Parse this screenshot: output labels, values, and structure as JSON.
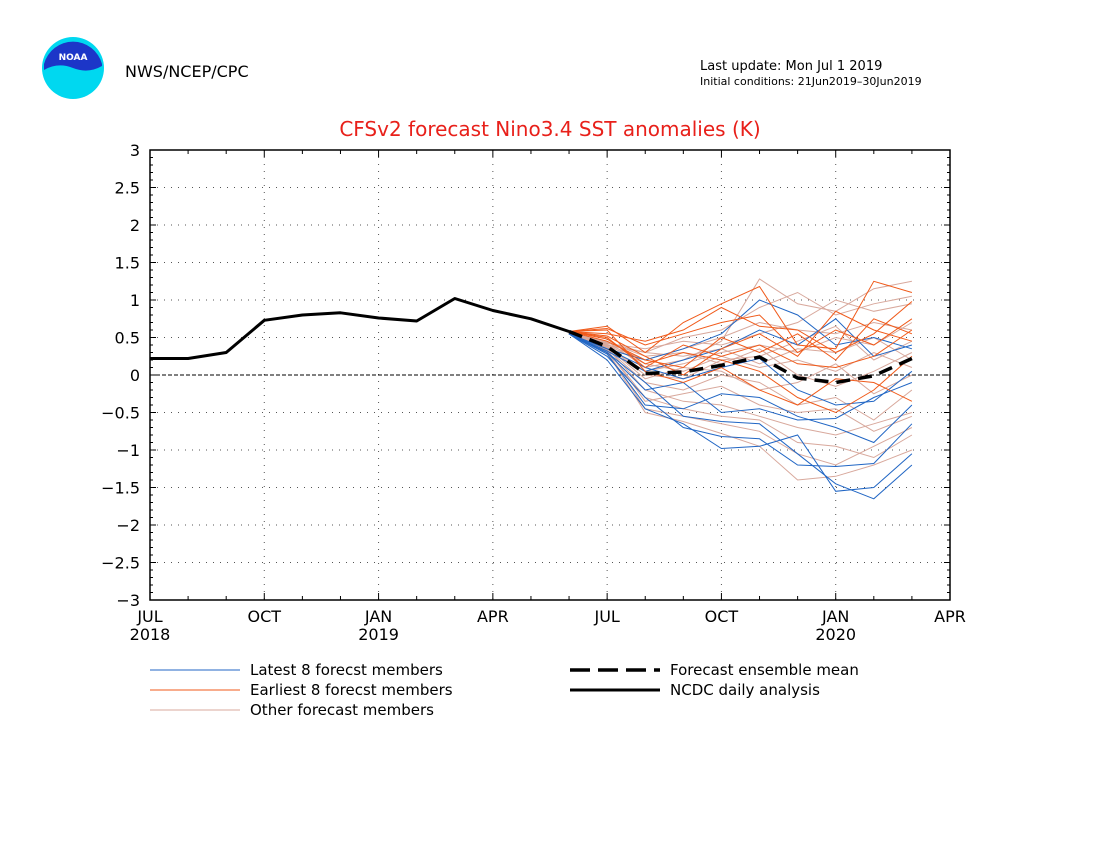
{
  "header": {
    "agency": "NWS/NCEP/CPC",
    "logo_text": "NOAA",
    "last_update": "Last update: Mon Jul  1 2019",
    "initial_conditions": "Initial conditions: 21Jun2019–30Jun2019"
  },
  "colors": {
    "title": "#e8201a",
    "latest": "#2166c4",
    "earliest": "#f05a1a",
    "other": "#d8a89c",
    "mean": "#000000",
    "analysis": "#000000",
    "logo_outer": "#00d8f0",
    "logo_inner": "#1c36c8"
  },
  "chart_data": {
    "type": "line",
    "title": "CFSv2 forecast Nino3.4 SST anomalies (K)",
    "ylim": [
      -3,
      3
    ],
    "y_ticks": [
      3,
      2.5,
      2,
      1.5,
      1,
      0.5,
      0,
      -0.5,
      -1,
      -1.5,
      -2,
      -2.5,
      -3
    ],
    "y_tick_labels": [
      "3",
      "2.5",
      "2",
      "1.5",
      "1",
      "0.5",
      "0",
      "−0.5",
      "−1",
      "−1.5",
      "−2",
      "−2.5",
      "−3"
    ],
    "xlim": [
      0,
      21
    ],
    "x_ticks": [
      {
        "month": 0,
        "label": "JUL",
        "year": "2018"
      },
      {
        "month": 3,
        "label": "OCT",
        "year": ""
      },
      {
        "month": 6,
        "label": "JAN",
        "year": "2019"
      },
      {
        "month": 9,
        "label": "APR",
        "year": ""
      },
      {
        "month": 12,
        "label": "JUL",
        "year": ""
      },
      {
        "month": 15,
        "label": "OCT",
        "year": ""
      },
      {
        "month": 18,
        "label": "JAN",
        "year": "2020"
      },
      {
        "month": 21,
        "label": "APR",
        "year": ""
      }
    ],
    "grid": true,
    "analysis": {
      "name": "NCDC daily analysis",
      "x": [
        0,
        1,
        2,
        3,
        4,
        5,
        6,
        7,
        8,
        9,
        10,
        11
      ],
      "y": [
        0.22,
        0.22,
        0.3,
        0.73,
        0.8,
        0.83,
        0.76,
        0.72,
        1.02,
        0.86,
        0.75,
        0.58
      ]
    },
    "ensemble_mean": {
      "name": "Forecast ensemble mean",
      "x": [
        11,
        12,
        13,
        14,
        15,
        16,
        17,
        18,
        19,
        20
      ],
      "y": [
        0.58,
        0.38,
        0.02,
        0.04,
        0.13,
        0.24,
        -0.04,
        -0.1,
        -0.01,
        0.22
      ]
    },
    "member_x": [
      11,
      12,
      13,
      14,
      15,
      16,
      17,
      18,
      19,
      20
    ],
    "member_groups": [
      {
        "name": "Latest 8 forecst members",
        "color_key": "latest",
        "members": [
          [
            0.55,
            0.2,
            -0.45,
            -0.65,
            -0.98,
            -0.95,
            -0.8,
            -1.55,
            -1.5,
            -1.05
          ],
          [
            0.55,
            0.25,
            -0.3,
            -0.7,
            -0.82,
            -0.85,
            -1.2,
            -1.22,
            -1.18,
            -0.65
          ],
          [
            0.55,
            0.3,
            -0.1,
            -0.55,
            -0.62,
            -0.65,
            -1.05,
            -1.45,
            -1.65,
            -1.2
          ],
          [
            0.55,
            0.35,
            0.1,
            -0.05,
            0.1,
            0.22,
            -0.2,
            -0.4,
            -0.35,
            0.05
          ],
          [
            0.55,
            0.35,
            0.2,
            0.35,
            0.55,
            1.0,
            0.8,
            0.4,
            0.5,
            0.35
          ],
          [
            0.55,
            0.3,
            -0.2,
            -0.1,
            -0.5,
            -0.45,
            -0.6,
            -0.58,
            -0.3,
            -0.1
          ],
          [
            0.55,
            0.32,
            0.05,
            0.2,
            0.35,
            0.6,
            0.4,
            0.75,
            0.25,
            0.4
          ],
          [
            0.55,
            0.28,
            -0.4,
            -0.45,
            -0.25,
            -0.3,
            -0.55,
            -0.7,
            -0.9,
            -0.4
          ]
        ]
      },
      {
        "name": "Earliest 8 forecst members",
        "color_key": "earliest",
        "members": [
          [
            0.58,
            0.65,
            0.3,
            0.7,
            0.95,
            1.18,
            0.4,
            0.35,
            1.25,
            1.1
          ],
          [
            0.58,
            0.55,
            0.45,
            0.6,
            0.9,
            0.65,
            0.6,
            0.3,
            0.55,
            0.98
          ],
          [
            0.58,
            0.5,
            0.1,
            0.4,
            0.25,
            0.4,
            0.15,
            0.1,
            0.25,
            0.6
          ],
          [
            0.58,
            0.6,
            0.05,
            -0.1,
            0.1,
            -0.2,
            -0.4,
            -0.05,
            -0.1,
            -0.35
          ],
          [
            0.58,
            0.45,
            0.2,
            0.1,
            0.5,
            0.3,
            0.55,
            0.2,
            0.75,
            0.55
          ],
          [
            0.58,
            0.62,
            0.4,
            0.55,
            0.7,
            0.8,
            0.3,
            0.6,
            0.4,
            0.75
          ],
          [
            0.58,
            0.48,
            0.15,
            0.3,
            0.2,
            0.05,
            -0.3,
            -0.5,
            -0.2,
            0.25
          ],
          [
            0.58,
            0.52,
            0.25,
            0.0,
            0.35,
            0.55,
            0.25,
            0.85,
            0.6,
            0.45
          ]
        ]
      },
      {
        "name": "Other forecast members",
        "color_key": "other",
        "members": [
          [
            0.56,
            0.45,
            0.1,
            0.2,
            0.45,
            1.28,
            0.95,
            0.85,
            1.15,
            1.25
          ],
          [
            0.56,
            0.4,
            0.3,
            0.5,
            0.6,
            0.9,
            1.1,
            0.8,
            0.95,
            1.05
          ],
          [
            0.56,
            0.42,
            0.35,
            0.45,
            0.4,
            0.55,
            0.7,
            1.0,
            0.85,
            0.95
          ],
          [
            0.56,
            0.38,
            0.05,
            0.15,
            0.3,
            0.4,
            0.3,
            0.5,
            0.4,
            0.7
          ],
          [
            0.56,
            0.35,
            -0.1,
            -0.2,
            0.0,
            -0.1,
            -0.4,
            -0.3,
            -0.6,
            -0.2
          ],
          [
            0.56,
            0.33,
            -0.3,
            -0.45,
            -0.55,
            -0.6,
            -0.9,
            -0.95,
            -1.1,
            -0.8
          ],
          [
            0.56,
            0.3,
            -0.5,
            -0.62,
            -0.78,
            -0.95,
            -1.4,
            -1.35,
            -1.2,
            -1.0
          ],
          [
            0.56,
            0.36,
            -0.2,
            -0.35,
            -0.4,
            -0.55,
            -0.7,
            -0.8,
            -0.65,
            -0.5
          ],
          [
            0.56,
            0.4,
            0.15,
            0.05,
            0.25,
            0.1,
            0.2,
            0.05,
            0.3,
            0.1
          ],
          [
            0.56,
            0.44,
            0.25,
            0.3,
            0.15,
            0.35,
            0.0,
            -0.15,
            0.05,
            0.3
          ],
          [
            0.56,
            0.37,
            -0.05,
            0.1,
            0.05,
            -0.2,
            -0.1,
            0.15,
            -0.25,
            0.0
          ],
          [
            0.56,
            0.34,
            -0.35,
            -0.25,
            -0.15,
            -0.4,
            -0.5,
            -0.45,
            -0.75,
            -0.55
          ],
          [
            0.56,
            0.41,
            0.2,
            0.35,
            0.5,
            0.7,
            0.6,
            0.55,
            0.7,
            0.6
          ],
          [
            0.56,
            0.39,
            0.0,
            -0.05,
            0.2,
            0.25,
            0.45,
            0.65,
            0.2,
            0.45
          ],
          [
            0.56,
            0.32,
            -0.45,
            -0.55,
            -0.65,
            -0.75,
            -1.05,
            -1.2,
            -0.95,
            -0.7
          ],
          [
            0.56,
            0.43,
            0.3,
            0.25,
            0.35,
            0.15,
            0.35,
            0.3,
            0.5,
            0.2
          ]
        ]
      }
    ],
    "legend": [
      {
        "label": "Latest 8 forecst members",
        "style": "thin",
        "color_key": "latest"
      },
      {
        "label": "Earliest 8 forecst members",
        "style": "thin",
        "color_key": "earliest"
      },
      {
        "label": "Other forecast members",
        "style": "thin",
        "color_key": "other"
      },
      {
        "label": "Forecast ensemble mean",
        "style": "dashed",
        "color_key": "mean"
      },
      {
        "label": "NCDC daily analysis",
        "style": "solid",
        "color_key": "analysis"
      }
    ],
    "legend_position": "bottom"
  }
}
